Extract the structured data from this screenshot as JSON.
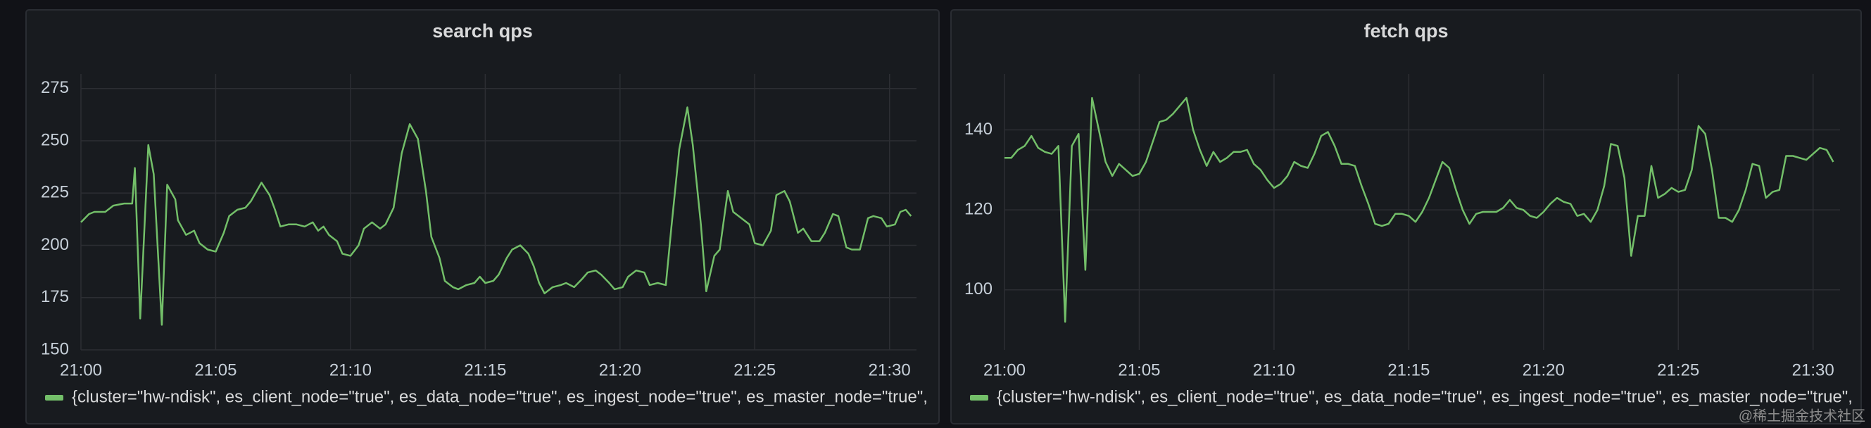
{
  "chart_data": [
    {
      "type": "line",
      "title": "search qps",
      "x": [
        1260,
        1260.3,
        1260.5,
        1260.9,
        1261.2,
        1261.6,
        1261.9,
        1262.0,
        1262.2,
        1262.5,
        1262.7,
        1263.0,
        1263.2,
        1263.5,
        1263.6,
        1263.9,
        1264.2,
        1264.4,
        1264.7,
        1265.0,
        1265.3,
        1265.5,
        1265.8,
        1266.1,
        1266.3,
        1266.7,
        1267.0,
        1267.2,
        1267.4,
        1267.7,
        1268.0,
        1268.3,
        1268.6,
        1268.8,
        1269.0,
        1269.2,
        1269.5,
        1269.7,
        1270.0,
        1270.3,
        1270.5,
        1270.8,
        1271.1,
        1271.3,
        1271.6,
        1271.9,
        1272.2,
        1272.5,
        1272.8,
        1273.0,
        1273.3,
        1273.5,
        1273.8,
        1274.0,
        1274.3,
        1274.6,
        1274.8,
        1275.0,
        1275.3,
        1275.5,
        1275.8,
        1276.0,
        1276.3,
        1276.6,
        1276.8,
        1277.0,
        1277.2,
        1277.5,
        1277.8,
        1278.0,
        1278.3,
        1278.6,
        1278.8,
        1279.1,
        1279.3,
        1279.6,
        1279.8,
        1280.1,
        1280.3,
        1280.6,
        1280.9,
        1281.1,
        1281.4,
        1281.7,
        1281.9,
        1282.2,
        1282.5,
        1282.7,
        1283.0,
        1283.2,
        1283.5,
        1283.7,
        1284.0,
        1284.2,
        1284.5,
        1284.8,
        1285.0,
        1285.3,
        1285.6,
        1285.8,
        1286.1,
        1286.3,
        1286.6,
        1286.8,
        1287.1,
        1287.4,
        1287.6,
        1287.9,
        1288.1,
        1288.4,
        1288.6,
        1288.9,
        1289.2,
        1289.4,
        1289.7,
        1289.9,
        1290.2,
        1290.4,
        1290.6,
        1290.8
      ],
      "series": [
        {
          "name": "{cluster=\"hw-ndisk\", es_client_node=\"true\", es_data_node=\"true\", es_ingest_node=\"true\", es_master_node=\"true\",",
          "color": "#73bf69",
          "values": [
            211,
            215,
            216,
            216,
            219,
            220,
            220,
            237,
            165,
            248,
            234,
            162,
            229,
            222,
            212,
            205,
            207,
            201,
            198,
            197,
            206,
            214,
            217,
            218,
            221,
            230,
            224,
            217,
            209,
            210,
            210,
            209,
            211,
            207,
            209,
            205,
            202,
            196,
            195,
            200,
            208,
            211,
            208,
            210,
            218,
            244,
            258,
            251,
            226,
            204,
            194,
            183,
            180,
            179,
            181,
            182,
            185,
            182,
            183,
            186,
            194,
            198,
            200,
            196,
            190,
            182,
            177,
            180,
            181,
            182,
            180,
            184,
            187,
            188,
            186,
            182,
            179,
            180,
            185,
            188,
            187,
            181,
            182,
            181,
            208,
            246,
            266,
            248,
            210,
            178,
            195,
            198,
            226,
            216,
            213,
            210,
            201,
            200,
            207,
            224,
            226,
            221,
            206,
            208,
            202,
            202,
            206,
            215,
            214,
            199,
            198,
            198,
            213,
            214,
            213,
            209,
            210,
            216,
            217,
            214
          ]
        }
      ],
      "xlim": [
        1260,
        1291
      ],
      "xticks": [
        {
          "value": 1260,
          "label": "21:00"
        },
        {
          "value": 1265,
          "label": "21:05"
        },
        {
          "value": 1270,
          "label": "21:10"
        },
        {
          "value": 1275,
          "label": "21:15"
        },
        {
          "value": 1280,
          "label": "21:20"
        },
        {
          "value": 1285,
          "label": "21:25"
        },
        {
          "value": 1290,
          "label": "21:30"
        }
      ],
      "ylim": [
        150,
        282
      ],
      "yticks": [
        150,
        175,
        200,
        225,
        250,
        275
      ],
      "grid": true
    },
    {
      "type": "line",
      "title": "fetch qps",
      "x": [
        1260,
        1260.25,
        1260.5,
        1260.75,
        1261,
        1261.25,
        1261.5,
        1261.75,
        1262,
        1262.25,
        1262.5,
        1262.75,
        1263,
        1263.25,
        1263.5,
        1263.75,
        1264,
        1264.25,
        1264.5,
        1264.75,
        1265,
        1265.25,
        1265.5,
        1265.75,
        1266,
        1266.25,
        1266.5,
        1266.75,
        1267,
        1267.25,
        1267.5,
        1267.75,
        1268,
        1268.25,
        1268.5,
        1268.75,
        1269,
        1269.25,
        1269.5,
        1269.75,
        1270,
        1270.25,
        1270.5,
        1270.75,
        1271,
        1271.25,
        1271.5,
        1271.75,
        1272,
        1272.25,
        1272.5,
        1272.75,
        1273,
        1273.25,
        1273.5,
        1273.75,
        1274,
        1274.25,
        1274.5,
        1274.75,
        1275,
        1275.25,
        1275.5,
        1275.75,
        1276,
        1276.25,
        1276.5,
        1276.75,
        1277,
        1277.25,
        1277.5,
        1277.75,
        1278,
        1278.25,
        1278.5,
        1278.75,
        1279,
        1279.25,
        1279.5,
        1279.75,
        1280,
        1280.25,
        1280.5,
        1280.75,
        1281,
        1281.25,
        1281.5,
        1281.75,
        1282,
        1282.25,
        1282.5,
        1282.75,
        1283,
        1283.25,
        1283.5,
        1283.75,
        1284,
        1284.25,
        1284.5,
        1284.75,
        1285,
        1285.25,
        1285.5,
        1285.75,
        1286,
        1286.25,
        1286.5,
        1286.75,
        1287,
        1287.25,
        1287.5,
        1287.75,
        1288,
        1288.25,
        1288.5,
        1288.75,
        1289,
        1289.25,
        1289.5,
        1289.75,
        1290,
        1290.25,
        1290.5,
        1290.75
      ],
      "series": [
        {
          "name": "{cluster=\"hw-ndisk\", es_client_node=\"true\", es_data_node=\"true\", es_ingest_node=\"true\", es_master_node=\"true\",",
          "color": "#73bf69",
          "values": [
            133,
            133,
            135,
            136,
            138.5,
            135.5,
            134.5,
            134,
            136,
            92,
            136,
            139,
            105,
            148,
            140,
            132,
            128.5,
            131.5,
            130,
            128.5,
            129,
            132,
            137,
            142,
            142.5,
            144,
            146,
            148,
            140,
            135,
            131,
            134.5,
            132,
            133,
            134.5,
            134.5,
            135,
            131.5,
            130,
            127.5,
            125.5,
            126.5,
            128.5,
            132,
            131,
            130.5,
            134,
            138.5,
            139.5,
            136,
            131.5,
            131.5,
            131,
            126,
            121.5,
            116.5,
            116,
            116.5,
            119,
            119,
            118.5,
            117,
            119.5,
            123,
            127.5,
            132,
            130.5,
            125,
            120,
            116.5,
            119,
            119.5,
            119.5,
            119.5,
            120.5,
            122.5,
            120.5,
            120,
            118.5,
            118,
            119.5,
            121.5,
            123,
            122,
            121.5,
            118.5,
            119,
            117,
            120,
            126,
            136.5,
            136,
            128,
            108.5,
            118.5,
            118.5,
            131,
            123,
            124,
            125.5,
            124.5,
            125,
            130,
            141,
            139,
            130,
            118,
            118,
            117,
            120,
            125,
            131.5,
            131,
            123,
            124.5,
            125,
            133.5,
            133.5,
            133,
            132.5,
            134,
            135.5,
            135,
            132
          ]
        }
      ],
      "xlim": [
        1260,
        1291
      ],
      "xticks": [
        {
          "value": 1260,
          "label": "21:00"
        },
        {
          "value": 1265,
          "label": "21:05"
        },
        {
          "value": 1270,
          "label": "21:10"
        },
        {
          "value": 1275,
          "label": "21:15"
        },
        {
          "value": 1280,
          "label": "21:20"
        },
        {
          "value": 1285,
          "label": "21:25"
        },
        {
          "value": 1290,
          "label": "21:30"
        }
      ],
      "ylim": [
        85,
        154
      ],
      "yticks": [
        100,
        120,
        140
      ],
      "grid": true
    }
  ],
  "watermark": "@稀土掘金技术社区"
}
